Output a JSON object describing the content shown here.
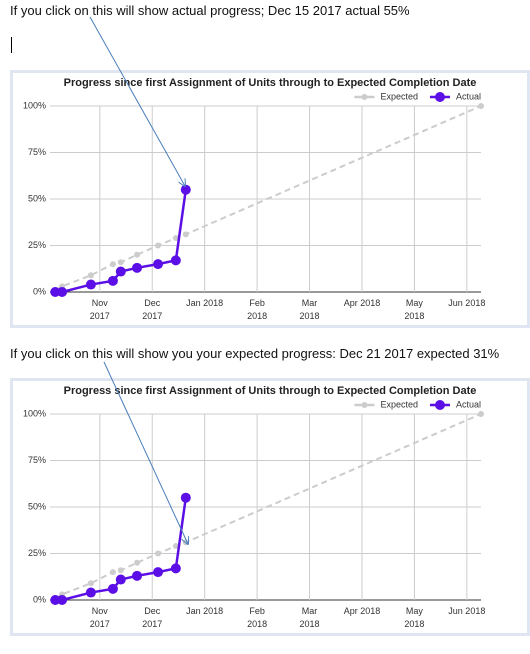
{
  "captions": [
    "If you click on this will show actual progress; Dec 15 2017 actual 55%",
    "If you click on this will show you your expected progress: Dec 21 2017 expected 31%"
  ],
  "chart_data": [
    {
      "type": "line",
      "title": "Progress since first Assignment of Units through to Expected Completion Date",
      "x": [
        10.15,
        10.28,
        10.83,
        11.25,
        11.4,
        11.71,
        12.11,
        12.45,
        12.64,
        18.27
      ],
      "series": [
        {
          "name": "Expected",
          "color": "#cccccc",
          "dashed": true,
          "values": [
            1,
            3,
            9,
            15,
            16,
            20,
            25,
            29,
            31,
            100
          ]
        },
        {
          "name": "Actual",
          "color": "#5b0fe6",
          "dashed": false,
          "values": [
            0,
            0,
            4,
            6,
            11,
            13,
            15,
            17,
            55,
            null
          ]
        }
      ],
      "xlim": [
        10.05,
        18.27
      ],
      "xticks": [
        {
          "value": 11,
          "label": "Nov\n2017"
        },
        {
          "value": 12,
          "label": "Dec\n2017"
        },
        {
          "value": 13,
          "label": "Jan 2018"
        },
        {
          "value": 14,
          "label": "Feb\n2018"
        },
        {
          "value": 15,
          "label": "Mar\n2018"
        },
        {
          "value": 16,
          "label": "Apr 2018"
        },
        {
          "value": 17,
          "label": "May\n2018"
        },
        {
          "value": 18,
          "label": "Jun 2018"
        }
      ],
      "ylim": [
        0,
        100
      ],
      "yticks": [
        {
          "value": 0,
          "label": "0%"
        },
        {
          "value": 25,
          "label": "25%"
        },
        {
          "value": 50,
          "label": "50%"
        },
        {
          "value": 75,
          "label": "75%"
        },
        {
          "value": 100,
          "label": "100%"
        }
      ],
      "grid": true,
      "legend": "top-right"
    },
    {
      "type": "line",
      "title": "Progress since first Assignment of Units through to Expected Completion Date",
      "x": [
        10.15,
        10.28,
        10.83,
        11.25,
        11.4,
        11.71,
        12.11,
        12.45,
        12.64,
        18.27
      ],
      "series": [
        {
          "name": "Expected",
          "color": "#cccccc",
          "dashed": true,
          "values": [
            1,
            3,
            9,
            15,
            16,
            20,
            25,
            29,
            31,
            100
          ]
        },
        {
          "name": "Actual",
          "color": "#5b0fe6",
          "dashed": false,
          "values": [
            0,
            0,
            4,
            6,
            11,
            13,
            15,
            17,
            55,
            null
          ]
        }
      ],
      "xlim": [
        10.05,
        18.27
      ],
      "xticks": [
        {
          "value": 11,
          "label": "Nov\n2017"
        },
        {
          "value": 12,
          "label": "Dec\n2017"
        },
        {
          "value": 13,
          "label": "Jan 2018"
        },
        {
          "value": 14,
          "label": "Feb\n2018"
        },
        {
          "value": 15,
          "label": "Mar\n2018"
        },
        {
          "value": 16,
          "label": "Apr 2018"
        },
        {
          "value": 17,
          "label": "May\n2018"
        },
        {
          "value": 18,
          "label": "Jun 2018"
        }
      ],
      "ylim": [
        0,
        100
      ],
      "yticks": [
        {
          "value": 0,
          "label": "0%"
        },
        {
          "value": 25,
          "label": "25%"
        },
        {
          "value": 50,
          "label": "50%"
        },
        {
          "value": 75,
          "label": "75%"
        },
        {
          "value": 100,
          "label": "100%"
        }
      ],
      "grid": true,
      "legend": "top-right"
    }
  ]
}
